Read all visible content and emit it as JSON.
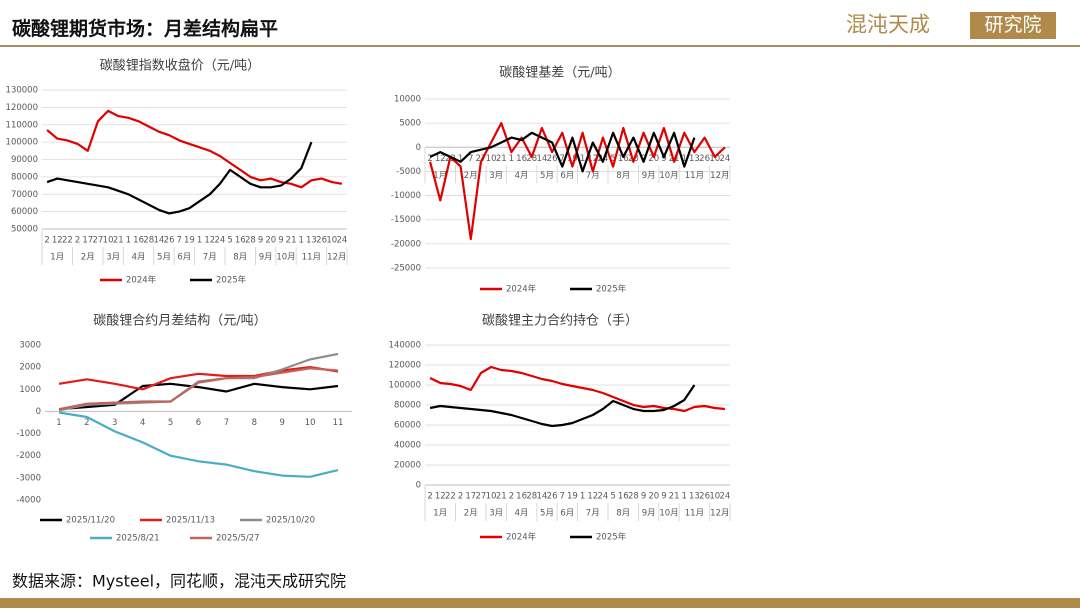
{
  "header": {
    "title": "碳酸锂期货市场：月差结构扁平",
    "logo_name": "混沌天成",
    "logo_box": "研究院"
  },
  "source": "数据来源：Mysteel，同花顺，混沌天成研究院",
  "chart_data": [
    {
      "type": "line",
      "title": "碳酸锂指数收盘价（元/吨）",
      "categories": [
        "2",
        "12",
        "22",
        "2",
        "17",
        "27",
        "10",
        "21",
        "1",
        "16",
        "28",
        "14",
        "26",
        "7",
        "19",
        "1",
        "12",
        "24",
        "5",
        "16",
        "28",
        "9",
        "20",
        "9",
        "21",
        "1",
        "13",
        "26",
        "10",
        "24"
      ],
      "x_groups": [
        {
          "label": "1月",
          "count": 3
        },
        {
          "label": "2月",
          "count": 3
        },
        {
          "label": "3月",
          "count": 2
        },
        {
          "label": "4月",
          "count": 3
        },
        {
          "label": "5月",
          "count": 2
        },
        {
          "label": "6月",
          "count": 2
        },
        {
          "label": "7月",
          "count": 3
        },
        {
          "label": "8月",
          "count": 3
        },
        {
          "label": "9月",
          "count": 2
        },
        {
          "label": "10月",
          "count": 2
        },
        {
          "label": "11月",
          "count": 3
        },
        {
          "label": "12月",
          "count": 2
        }
      ],
      "series": [
        {
          "name": "2024年",
          "color": "#e00000",
          "values": [
            107000,
            102000,
            101000,
            99000,
            95000,
            112000,
            118000,
            115000,
            114000,
            112000,
            109000,
            106000,
            104000,
            101000,
            99000,
            97000,
            95000,
            92000,
            88000,
            84000,
            80000,
            78000,
            79000,
            77000,
            76000,
            74000,
            78000,
            79000,
            77000,
            76000
          ]
        },
        {
          "name": "2025年",
          "color": "#000000",
          "values": [
            77000,
            79000,
            78000,
            77000,
            76000,
            75000,
            74000,
            72000,
            70000,
            67000,
            64000,
            61000,
            59000,
            60000,
            62000,
            66000,
            70000,
            76000,
            84000,
            80000,
            76000,
            74000,
            74000,
            75000,
            79000,
            85000,
            100000,
            null,
            null,
            null
          ]
        }
      ],
      "ylim": [
        50000,
        130000
      ],
      "yticks": [
        50000,
        60000,
        70000,
        80000,
        90000,
        100000,
        110000,
        120000,
        130000
      ],
      "grid": true,
      "legend": "bottom"
    },
    {
      "type": "line",
      "title": "碳酸锂基差（元/吨）",
      "categories": [
        "2",
        "12",
        "22",
        "1",
        "7",
        "27",
        "10",
        "21",
        "1",
        "16",
        "28",
        "14",
        "26",
        "7",
        "19",
        "1",
        "12",
        "24",
        "5",
        "16",
        "28",
        "9",
        "20",
        "9",
        "21",
        "1",
        "13",
        "26",
        "10",
        "24"
      ],
      "x_groups": [
        {
          "label": "1月",
          "count": 3
        },
        {
          "label": "2月",
          "count": 3
        },
        {
          "label": "3月",
          "count": 2
        },
        {
          "label": "4月",
          "count": 3
        },
        {
          "label": "5月",
          "count": 2
        },
        {
          "label": "6月",
          "count": 2
        },
        {
          "label": "7月",
          "count": 3
        },
        {
          "label": "8月",
          "count": 3
        },
        {
          "label": "9月",
          "count": 2
        },
        {
          "label": "10月",
          "count": 2
        },
        {
          "label": "11月",
          "count": 3
        },
        {
          "label": "12月",
          "count": 2
        }
      ],
      "series": [
        {
          "name": "2024年",
          "color": "#e00000",
          "values": [
            -3000,
            -11000,
            -2000,
            -4000,
            -19000,
            -3000,
            1000,
            5000,
            -1000,
            2000,
            -2000,
            4000,
            -1000,
            3000,
            -4000,
            3000,
            -5000,
            2000,
            -4000,
            4000,
            -3000,
            3000,
            -2000,
            4000,
            -3000,
            3000,
            -1000,
            2000,
            -2000,
            0
          ]
        },
        {
          "name": "2025年",
          "color": "#000000",
          "values": [
            -2000,
            -1000,
            -2000,
            -3000,
            -1000,
            -500,
            0,
            1000,
            2000,
            1500,
            3000,
            2000,
            1000,
            -4000,
            2000,
            -5000,
            1000,
            -3000,
            3000,
            -2000,
            2000,
            -3000,
            3000,
            -2000,
            3000,
            -4000,
            2000,
            null,
            null,
            null
          ]
        }
      ],
      "ylim": [
        -25000,
        10000
      ],
      "yticks": [
        -25000,
        -20000,
        -15000,
        -10000,
        -5000,
        0,
        5000,
        10000
      ],
      "grid": true,
      "legend": "bottom"
    },
    {
      "type": "line",
      "title": "碳酸锂合约月差结构（元/吨）",
      "categories": [
        "1",
        "2",
        "3",
        "4",
        "5",
        "6",
        "7",
        "8",
        "9",
        "10",
        "11"
      ],
      "series": [
        {
          "name": "2025/11/20",
          "color": "#000000",
          "values": [
            100,
            200,
            300,
            1150,
            1250,
            1100,
            900,
            1250,
            1100,
            1000,
            1150
          ]
        },
        {
          "name": "2025/11/13",
          "color": "#e31b1b",
          "values": [
            1250,
            1450,
            1250,
            1000,
            1500,
            1700,
            1600,
            1600,
            1850,
            2000,
            1800
          ]
        },
        {
          "name": "2025/10/20",
          "color": "#8c8c8c",
          "values": [
            50,
            300,
            350,
            400,
            450,
            1350,
            1500,
            1500,
            1900,
            2350,
            2600
          ]
        },
        {
          "name": "2025/8/21",
          "color": "#4bacc6",
          "values": [
            -50,
            -250,
            -900,
            -1400,
            -2000,
            -2250,
            -2400,
            -2700,
            -2900,
            -2950,
            -2650
          ]
        },
        {
          "name": "2025/5/27",
          "color": "#c0645a",
          "values": [
            100,
            350,
            400,
            450,
            450,
            1300,
            1500,
            1550,
            1750,
            1950,
            1850
          ]
        }
      ],
      "ylim": [
        -4000,
        3000
      ],
      "yticks": [
        -4000,
        -3000,
        -2000,
        -1000,
        0,
        1000,
        2000,
        3000
      ],
      "grid": false,
      "legend": "bottom"
    },
    {
      "type": "line",
      "title": "碳酸锂主力合约持仓（手）",
      "categories": [
        "2",
        "12",
        "22",
        "2",
        "17",
        "27",
        "10",
        "21",
        "2",
        "16",
        "28",
        "14",
        "26",
        "7",
        "19",
        "1",
        "12",
        "24",
        "5",
        "16",
        "28",
        "9",
        "20",
        "9",
        "21",
        "1",
        "13",
        "26",
        "10",
        "24"
      ],
      "x_groups": [
        {
          "label": "1月",
          "count": 3
        },
        {
          "label": "2月",
          "count": 3
        },
        {
          "label": "3月",
          "count": 2
        },
        {
          "label": "4月",
          "count": 3
        },
        {
          "label": "5月",
          "count": 2
        },
        {
          "label": "6月",
          "count": 2
        },
        {
          "label": "7月",
          "count": 3
        },
        {
          "label": "8月",
          "count": 3
        },
        {
          "label": "9月",
          "count": 2
        },
        {
          "label": "10月",
          "count": 2
        },
        {
          "label": "11月",
          "count": 3
        },
        {
          "label": "12月",
          "count": 2
        }
      ],
      "series": [
        {
          "name": "2024年",
          "color": "#e00000",
          "values": [
            107000,
            102000,
            101000,
            99000,
            95000,
            112000,
            118000,
            115000,
            114000,
            112000,
            109000,
            106000,
            104000,
            101000,
            99000,
            97000,
            95000,
            92000,
            88000,
            84000,
            80000,
            78000,
            79000,
            77000,
            76000,
            74000,
            78000,
            79000,
            77000,
            76000
          ]
        },
        {
          "name": "2025年",
          "color": "#000000",
          "values": [
            77000,
            79000,
            78000,
            77000,
            76000,
            75000,
            74000,
            72000,
            70000,
            67000,
            64000,
            61000,
            59000,
            60000,
            62000,
            66000,
            70000,
            76000,
            84000,
            80000,
            76000,
            74000,
            74000,
            75000,
            79000,
            85000,
            100000,
            null,
            null,
            null
          ]
        }
      ],
      "ylim": [
        0,
        140000
      ],
      "yticks": [
        0,
        20000,
        40000,
        60000,
        80000,
        100000,
        120000,
        140000
      ],
      "grid": true,
      "legend": "bottom"
    }
  ]
}
